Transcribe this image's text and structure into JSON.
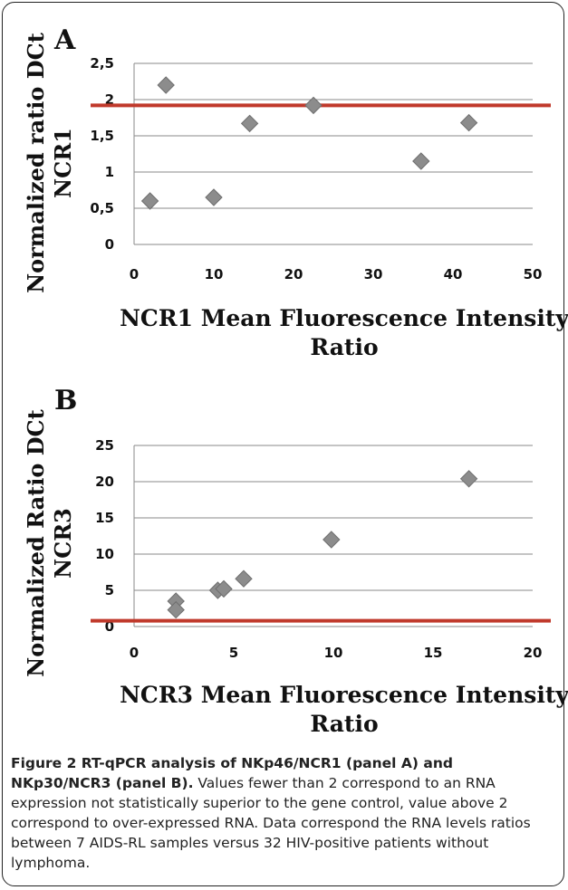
{
  "chart_data": [
    {
      "type": "scatter",
      "panel_label": "A",
      "ylabel_lines": [
        "Normalized ratio DCt",
        "NCR1"
      ],
      "xlabel_lines": [
        "NCR1 Mean Fluorescence Intensity",
        "Ratio"
      ],
      "xlim": [
        0,
        50
      ],
      "ylim": [
        0,
        2.5
      ],
      "xticks": [
        0,
        10,
        20,
        30,
        40,
        50
      ],
      "yticks": [
        0,
        0.5,
        1,
        1.5,
        2,
        2.5
      ],
      "ytick_labels": [
        "0",
        "0,5",
        "1",
        "1,5",
        "2",
        "2,5"
      ],
      "grid": true,
      "threshold_y": 1.92,
      "threshold_color": "#c0392b",
      "marker_color": "#8c8c8c",
      "points": [
        {
          "x": 2,
          "y": 0.6
        },
        {
          "x": 4,
          "y": 2.2
        },
        {
          "x": 10,
          "y": 0.65
        },
        {
          "x": 14.5,
          "y": 1.67
        },
        {
          "x": 22.5,
          "y": 1.92
        },
        {
          "x": 36,
          "y": 1.15
        },
        {
          "x": 42,
          "y": 1.68
        }
      ]
    },
    {
      "type": "scatter",
      "panel_label": "B",
      "ylabel_lines": [
        "Normalized Ratio DCt",
        "NCR3"
      ],
      "xlabel_lines": [
        "NCR3 Mean Fluorescence Intensity",
        "Ratio"
      ],
      "xlim": [
        0,
        20
      ],
      "ylim": [
        0,
        25
      ],
      "xticks": [
        0,
        5,
        10,
        15,
        20
      ],
      "yticks": [
        0,
        5,
        10,
        15,
        20,
        25
      ],
      "ytick_labels": [
        "0",
        "5",
        "10",
        "15",
        "20",
        "25"
      ],
      "grid": true,
      "threshold_y": 0.8,
      "threshold_color": "#c0392b",
      "marker_color": "#8c8c8c",
      "points": [
        {
          "x": 2.1,
          "y": 3.5
        },
        {
          "x": 2.1,
          "y": 2.3
        },
        {
          "x": 4.2,
          "y": 5.0
        },
        {
          "x": 4.5,
          "y": 5.2
        },
        {
          "x": 5.5,
          "y": 6.6
        },
        {
          "x": 9.9,
          "y": 12.0
        },
        {
          "x": 16.8,
          "y": 20.4
        }
      ]
    }
  ],
  "caption": {
    "label": "Figure 2 RT-qPCR analysis of NKp46/NCR1 (panel A) and NKp30/NCR3 (panel B).",
    "text": "Values fewer than 2 correspond to an RNA expression not statistically superior to the gene control, value above 2 correspond to over-expressed RNA. Data correspond the RNA levels ratios between 7 AIDS-RL samples versus 32 HIV-positive patients without lymphoma."
  }
}
